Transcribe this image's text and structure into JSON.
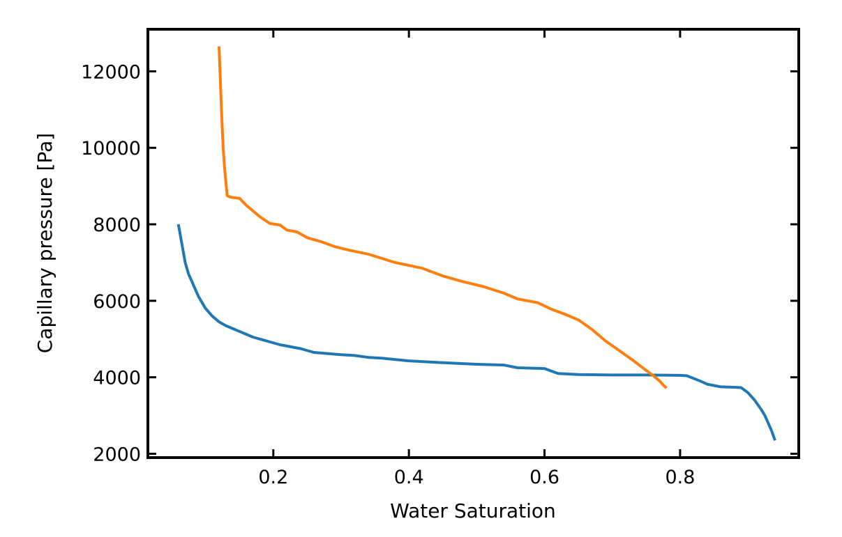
{
  "chart_data": {
    "type": "line",
    "title": "",
    "xlabel": "Water Saturation",
    "ylabel": "Capillary pressure [Pa]",
    "xlim": [
      0.015,
      0.975
    ],
    "ylim": [
      1900,
      13100
    ],
    "xticks": [
      0.2,
      0.4,
      0.6,
      0.8
    ],
    "xtick_labels": [
      "0.2",
      "0.4",
      "0.6",
      "0.8"
    ],
    "yticks": [
      2000,
      4000,
      6000,
      8000,
      10000,
      12000
    ],
    "ytick_labels": [
      "2000",
      "4000",
      "6000",
      "8000",
      "10000",
      "12000"
    ],
    "grid": false,
    "legend": "none",
    "series": [
      {
        "color": "#1f77b4",
        "x": [
          0.06,
          0.065,
          0.07,
          0.075,
          0.08,
          0.085,
          0.09,
          0.1,
          0.11,
          0.12,
          0.13,
          0.15,
          0.17,
          0.19,
          0.21,
          0.24,
          0.26,
          0.28,
          0.3,
          0.32,
          0.34,
          0.36,
          0.4,
          0.45,
          0.5,
          0.54,
          0.56,
          0.6,
          0.62,
          0.65,
          0.7,
          0.75,
          0.8,
          0.81,
          0.83,
          0.84,
          0.86,
          0.88,
          0.89,
          0.9,
          0.91,
          0.92,
          0.925,
          0.93,
          0.935,
          0.94
        ],
        "y": [
          8000,
          7500,
          7000,
          6700,
          6500,
          6300,
          6100,
          5800,
          5600,
          5450,
          5350,
          5200,
          5050,
          4950,
          4850,
          4750,
          4650,
          4620,
          4590,
          4570,
          4520,
          4500,
          4430,
          4380,
          4340,
          4320,
          4250,
          4230,
          4100,
          4070,
          4060,
          4060,
          4050,
          4040,
          3900,
          3820,
          3750,
          3740,
          3730,
          3600,
          3400,
          3150,
          3000,
          2800,
          2600,
          2350
        ]
      },
      {
        "color": "#ff7f0e",
        "x": [
          0.12,
          0.122,
          0.124,
          0.126,
          0.128,
          0.13,
          0.132,
          0.135,
          0.14,
          0.15,
          0.16,
          0.17,
          0.18,
          0.195,
          0.21,
          0.22,
          0.235,
          0.25,
          0.27,
          0.29,
          0.31,
          0.34,
          0.38,
          0.42,
          0.45,
          0.48,
          0.51,
          0.54,
          0.56,
          0.59,
          0.61,
          0.63,
          0.65,
          0.67,
          0.69,
          0.71,
          0.73,
          0.75,
          0.76,
          0.77,
          0.775,
          0.78
        ],
        "y": [
          12650,
          11700,
          10800,
          10000,
          9500,
          9100,
          8750,
          8720,
          8700,
          8680,
          8500,
          8350,
          8200,
          8020,
          7980,
          7850,
          7800,
          7650,
          7550,
          7420,
          7330,
          7220,
          7000,
          6850,
          6650,
          6500,
          6370,
          6200,
          6050,
          5950,
          5780,
          5650,
          5500,
          5250,
          4950,
          4700,
          4450,
          4180,
          4050,
          3900,
          3800,
          3720
        ]
      }
    ]
  }
}
